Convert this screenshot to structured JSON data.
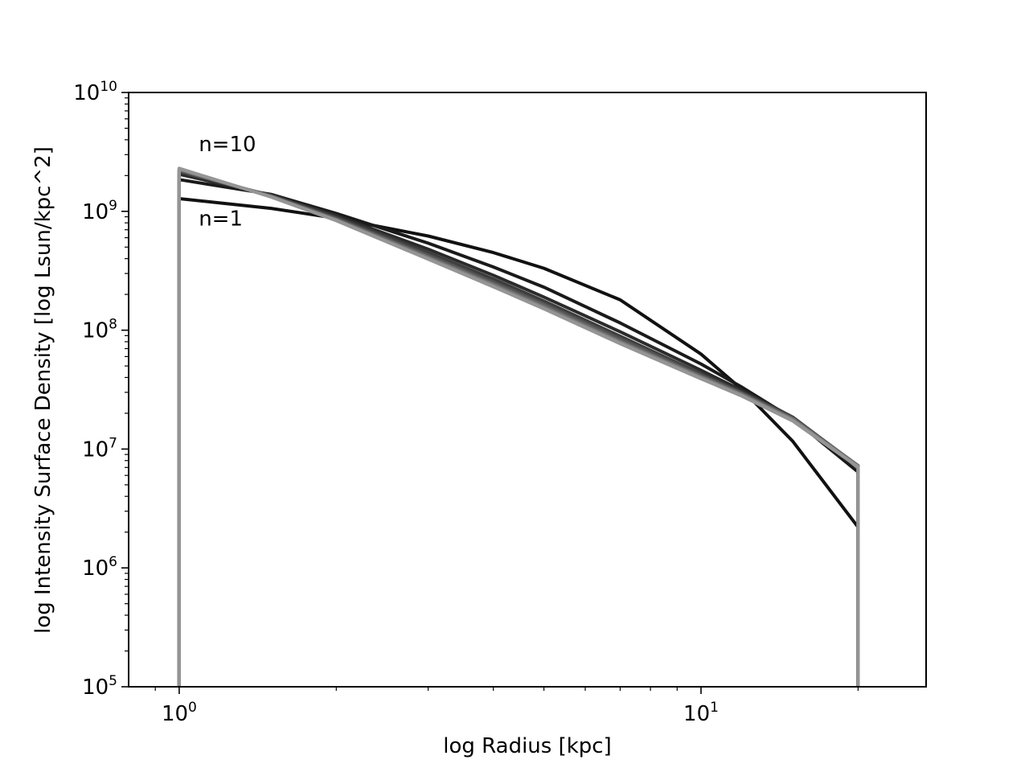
{
  "chart_data": {
    "type": "line",
    "title": "",
    "xlabel": "log Radius [kpc]",
    "ylabel": "log Intensity Surface Density [log Lsun/kpc^2]",
    "x_scale": "log",
    "y_scale": "log",
    "xlim": [
      0.8,
      27
    ],
    "ylim": [
      100000,
      10000000000
    ],
    "x_ticks": [
      {
        "base": "10",
        "exp": "0",
        "value": 1
      },
      {
        "base": "10",
        "exp": "1",
        "value": 10
      }
    ],
    "y_ticks": [
      {
        "base": "10",
        "exp": "5",
        "value": 100000
      },
      {
        "base": "10",
        "exp": "6",
        "value": 1000000
      },
      {
        "base": "10",
        "exp": "7",
        "value": 10000000
      },
      {
        "base": "10",
        "exp": "8",
        "value": 100000000
      },
      {
        "base": "10",
        "exp": "9",
        "value": 1000000000
      },
      {
        "base": "10",
        "exp": "10",
        "value": 10000000000
      }
    ],
    "grid": false,
    "legend": "none",
    "annotations": [
      {
        "text": "n=10",
        "x": 1.09,
        "y": 3200000000
      },
      {
        "text": "n=1",
        "x": 1.09,
        "y": 760000000
      }
    ],
    "series": [
      {
        "n": 1,
        "color": "#111111",
        "x": [
          1,
          1,
          1.5,
          2,
          3,
          4,
          5,
          7,
          10,
          12,
          15,
          20,
          20
        ],
        "y": [
          100000,
          1280000000,
          1060000000,
          875000000,
          620000000,
          450000000,
          332000000,
          180000000,
          63000000,
          31500000,
          11600000,
          2200000,
          100000
        ]
      },
      {
        "n": 2,
        "color": "#1a1a1a",
        "x": [
          1,
          1,
          1.5,
          2,
          3,
          4,
          5,
          7,
          10,
          12,
          15,
          20,
          20
        ],
        "y": [
          100000,
          1850000000,
          1390000000,
          960000000,
          540000000,
          340000000,
          230000000,
          115000000,
          52000000,
          33000000,
          18000000,
          6400000,
          100000
        ]
      },
      {
        "n": 3,
        "color": "#2b2b2b",
        "x": [
          1,
          1,
          1.5,
          2,
          3,
          4,
          5,
          7,
          10,
          12,
          15,
          20,
          20
        ],
        "y": [
          100000,
          2050000000,
          1370000000,
          920000000,
          480000000,
          290000000,
          190000000,
          97000000,
          46000000,
          31000000,
          18500000,
          7000000,
          100000
        ]
      },
      {
        "n": 4,
        "color": "#3d3d3d",
        "x": [
          1,
          1,
          1.5,
          2,
          3,
          4,
          5,
          7,
          10,
          12,
          15,
          20,
          20
        ],
        "y": [
          100000,
          2150000000,
          1360000000,
          890000000,
          450000000,
          270000000,
          176000000,
          89000000,
          43000000,
          30000000,
          18500000,
          7200000,
          100000
        ]
      },
      {
        "n": 5,
        "color": "#505050",
        "x": [
          1,
          1,
          1.5,
          2,
          3,
          4,
          5,
          7,
          10,
          12,
          15,
          20,
          20
        ],
        "y": [
          100000,
          2200000000,
          1350000000,
          870000000,
          430000000,
          255000000,
          167000000,
          85000000,
          42000000,
          29500000,
          18200000,
          7250000,
          100000
        ]
      },
      {
        "n": 6,
        "color": "#606060",
        "x": [
          1,
          1,
          1.5,
          2,
          3,
          4,
          5,
          7,
          10,
          12,
          15,
          20,
          20
        ],
        "y": [
          100000,
          2230000000,
          1340000000,
          860000000,
          418000000,
          247000000,
          162000000,
          82000000,
          41000000,
          29000000,
          18000000,
          7250000,
          100000
        ]
      },
      {
        "n": 7,
        "color": "#6e6e6e",
        "x": [
          1,
          1,
          1.5,
          2,
          3,
          4,
          5,
          7,
          10,
          12,
          15,
          20,
          20
        ],
        "y": [
          100000,
          2250000000,
          1335000000,
          850000000,
          410000000,
          242000000,
          158000000,
          80000000,
          40500000,
          28700000,
          17800000,
          7200000,
          100000
        ]
      },
      {
        "n": 8,
        "color": "#7c7c7c",
        "x": [
          1,
          1,
          1.5,
          2,
          3,
          4,
          5,
          7,
          10,
          12,
          15,
          20,
          20
        ],
        "y": [
          100000,
          2270000000,
          1330000000,
          845000000,
          404000000,
          238000000,
          155000000,
          79000000,
          40000000,
          28400000,
          17600000,
          7150000,
          100000
        ]
      },
      {
        "n": 9,
        "color": "#888888",
        "x": [
          1,
          1,
          1.5,
          2,
          3,
          4,
          5,
          7,
          10,
          12,
          15,
          20,
          20
        ],
        "y": [
          100000,
          2280000000,
          1325000000,
          840000000,
          400000000,
          235000000,
          153000000,
          78000000,
          39500000,
          28100000,
          17400000,
          7100000,
          100000
        ]
      },
      {
        "n": 10,
        "color": "#959595",
        "x": [
          1,
          1,
          1.5,
          2,
          3,
          4,
          5,
          7,
          10,
          12,
          15,
          20,
          20
        ],
        "y": [
          100000,
          2300000000,
          1320000000,
          835000000,
          396000000,
          232000000,
          151000000,
          77000000,
          39000000,
          27800000,
          17200000,
          7050000,
          100000
        ]
      }
    ]
  }
}
